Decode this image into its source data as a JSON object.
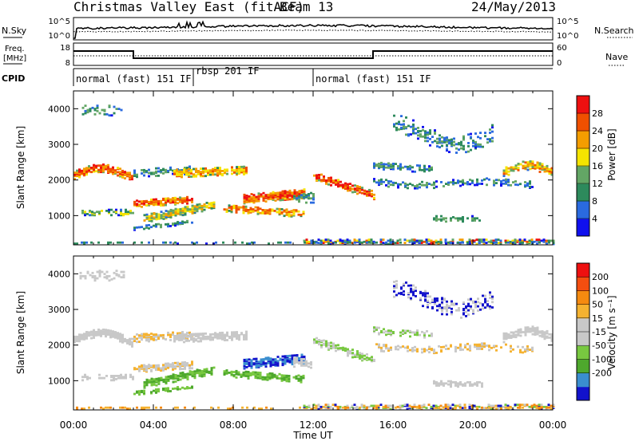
{
  "header": {
    "station": "Christmas Valley East (fitACF)",
    "beam": "Beam 13",
    "date": "24/May/2013"
  },
  "nsky_panel": {
    "left_label": "N.Sky",
    "left_ticks": [
      "10^5",
      "10^0"
    ],
    "right_label": "N.Search",
    "right_ticks": [
      "10^5",
      "10^0"
    ]
  },
  "freq_panel": {
    "left_label_line1": "Freq.",
    "left_label_line2": "[MHz]",
    "left_ticks": [
      "18",
      "8"
    ],
    "right_label": "Nave",
    "right_ticks": [
      "60",
      "0"
    ]
  },
  "cpid_panel": {
    "label": "CPID",
    "segments": [
      {
        "label": "normal (fast) 151 IF",
        "start_hour": 0,
        "end_hour": 6
      },
      {
        "label": "rbsp 201 IF",
        "start_hour": 6,
        "end_hour": 12
      },
      {
        "label": "normal (fast) 151 IF",
        "start_hour": 12,
        "end_hour": 24
      }
    ]
  },
  "colors": {
    "power_scale": [
      "#1010ee",
      "#2a6adf",
      "#2d8a5c",
      "#63a665",
      "#f5e400",
      "#f49d00",
      "#f05000",
      "#ee1010"
    ],
    "velocity_scale": [
      "#ee1010",
      "#f44e10",
      "#f58a10",
      "#f5b230",
      "#c8c8c8",
      "#c8c8c8",
      "#78c840",
      "#4ea82d",
      "#3a8ecf",
      "#1212cc"
    ]
  },
  "chart_data": [
    {
      "type": "heatmap",
      "name": "power",
      "ylabel": "Slant Range [km]",
      "yticks": [
        "1000",
        "2000",
        "3000",
        "4000"
      ],
      "xlim_hours": [
        0,
        24
      ],
      "ylim_km": [
        180,
        4500
      ],
      "colorbar_label": "Power [dB]",
      "colorbar_ticks": [
        "4",
        "8",
        "12",
        "16",
        "20",
        "24",
        "28"
      ],
      "clim": [
        0,
        32
      ]
    },
    {
      "type": "heatmap",
      "name": "velocity",
      "ylabel": "Slant Range [km]",
      "yticks": [
        "1000",
        "2000",
        "3000",
        "4000"
      ],
      "xlim_hours": [
        0,
        24
      ],
      "ylim_km": [
        180,
        4500
      ],
      "colorbar_label": "Velocity [m s⁻¹]",
      "colorbar_ticks": [
        "200",
        "100",
        "50",
        "15",
        "-15",
        "-50",
        "-100",
        "-200"
      ]
    }
  ],
  "xaxis": {
    "label": "Time UT",
    "ticks": [
      "00:00",
      "04:00",
      "08:00",
      "12:00",
      "16:00",
      "20:00",
      "00:00"
    ]
  }
}
